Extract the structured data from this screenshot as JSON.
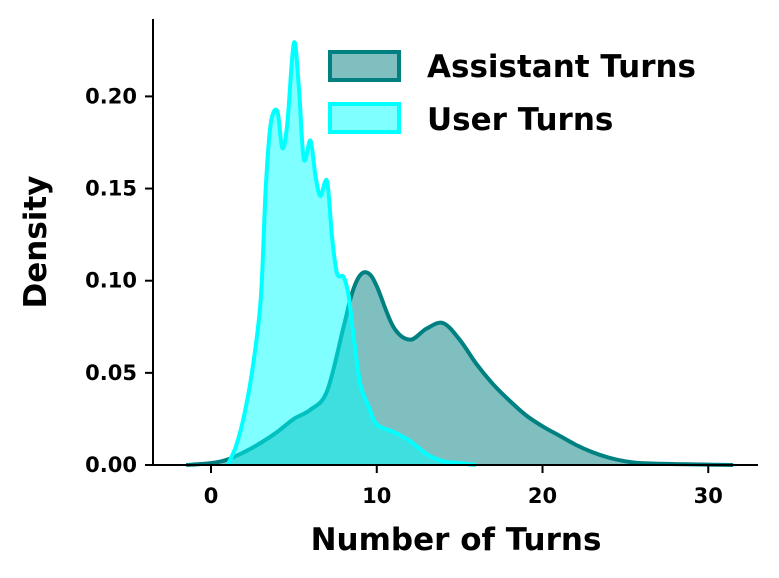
{
  "chart_data": {
    "type": "area",
    "title": "",
    "xlabel": "Number of Turns",
    "ylabel": "Density",
    "xlim": [
      -3.5,
      33
    ],
    "ylim": [
      0,
      0.242
    ],
    "xticks": [
      0,
      10,
      20,
      30
    ],
    "xtick_labels": [
      "0",
      "10",
      "20",
      "30"
    ],
    "yticks": [
      0.0,
      0.05,
      0.1,
      0.15,
      0.2
    ],
    "ytick_labels": [
      "0.00",
      "0.05",
      "0.10",
      "0.15",
      "0.20"
    ],
    "legend_position": "top-right",
    "grid": false,
    "series": [
      {
        "name": "Assistant Turns",
        "line_color": "#008080",
        "fill_color": "#008080",
        "fill_opacity": 0.5,
        "x": [
          -1.5,
          0,
          1,
          2,
          3,
          4,
          5,
          6,
          7,
          8,
          8.5,
          9,
          9.5,
          10,
          11,
          12,
          13,
          14,
          15,
          16,
          17,
          18,
          19,
          20,
          21,
          22,
          23,
          24,
          25,
          26,
          28,
          30,
          31.5
        ],
        "y": [
          0.0,
          0.001,
          0.003,
          0.007,
          0.012,
          0.018,
          0.025,
          0.03,
          0.04,
          0.075,
          0.093,
          0.103,
          0.104,
          0.097,
          0.075,
          0.068,
          0.074,
          0.077,
          0.068,
          0.055,
          0.044,
          0.035,
          0.027,
          0.021,
          0.016,
          0.011,
          0.007,
          0.004,
          0.002,
          0.001,
          0.0005,
          0.0002,
          0.0
        ]
      },
      {
        "name": "User Turns",
        "line_color": "#00FFFF",
        "fill_color": "#00FFFF",
        "fill_opacity": 0.5,
        "x": [
          1.0,
          1.5,
          2.0,
          2.5,
          3.0,
          3.3,
          3.6,
          4.0,
          4.3,
          4.6,
          5.0,
          5.3,
          5.6,
          6.0,
          6.3,
          6.6,
          7.0,
          7.3,
          7.6,
          8.0,
          8.3,
          8.6,
          9.0,
          9.5,
          10.0,
          11.0,
          12.0,
          13.0,
          14.0,
          15.0,
          16.0
        ],
        "y": [
          0.0,
          0.01,
          0.027,
          0.052,
          0.09,
          0.15,
          0.185,
          0.192,
          0.172,
          0.185,
          0.229,
          0.205,
          0.166,
          0.176,
          0.157,
          0.146,
          0.154,
          0.124,
          0.104,
          0.102,
          0.092,
          0.07,
          0.044,
          0.032,
          0.022,
          0.018,
          0.013,
          0.006,
          0.002,
          0.001,
          0.0
        ]
      }
    ]
  }
}
